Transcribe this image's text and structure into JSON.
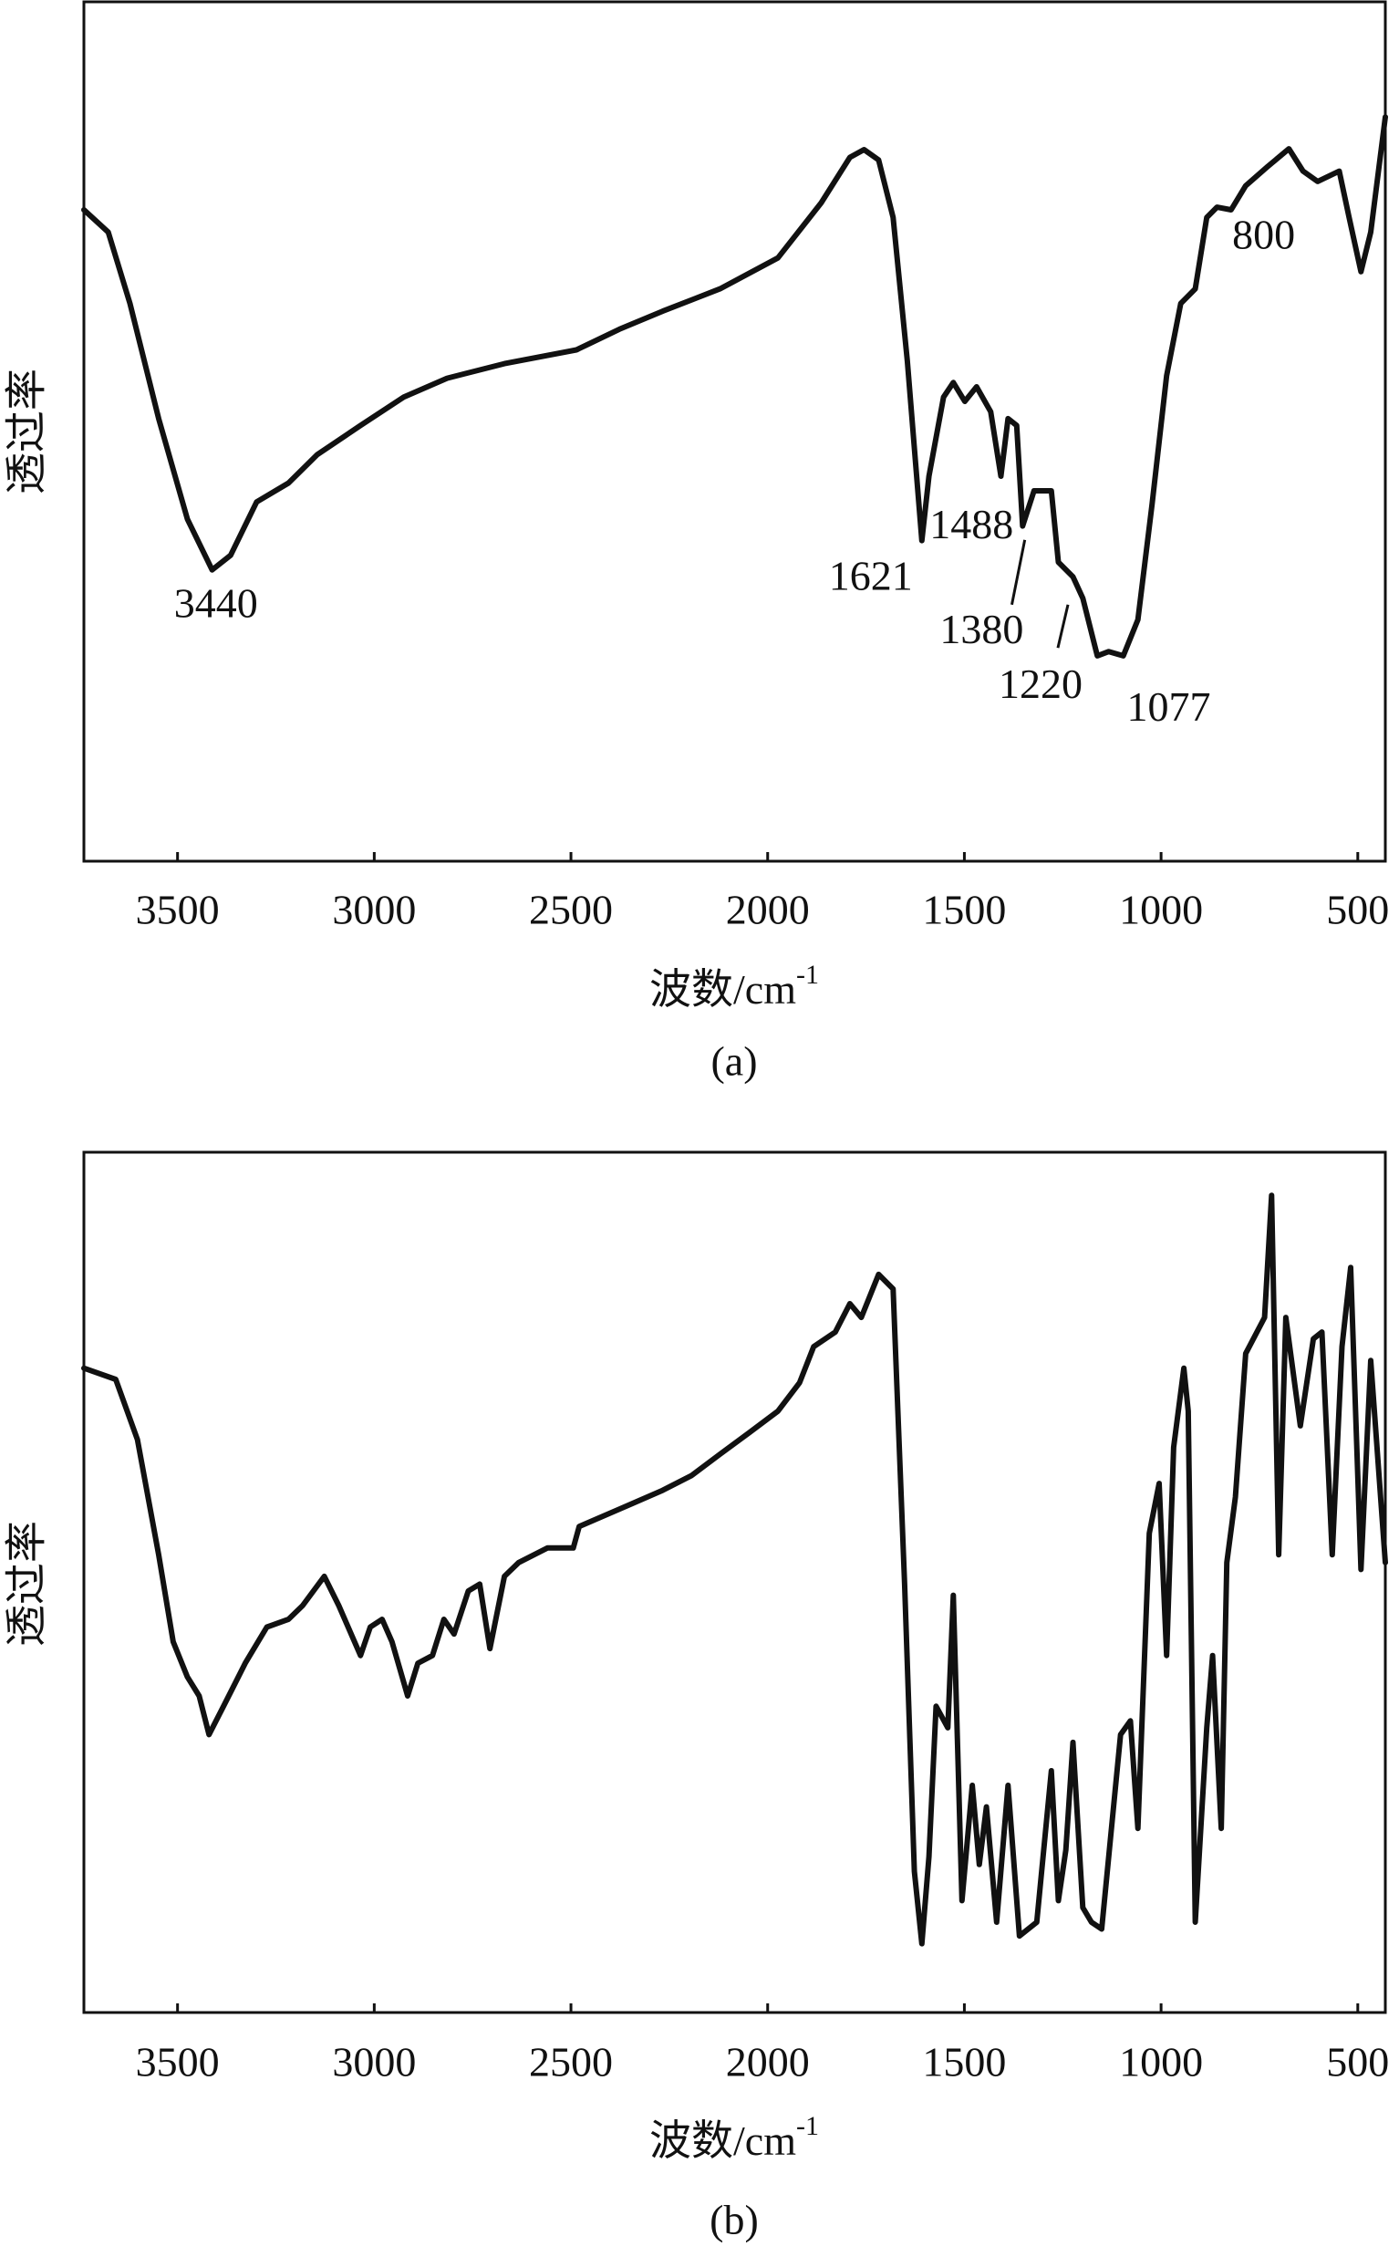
{
  "chart_data": [
    {
      "type": "line",
      "caption": "(a)",
      "ylabel": "透过率",
      "xlabel": "波数/cm",
      "xlabel_sup": "-1",
      "xlim": [
        3738,
        430
      ],
      "xticks": [
        3500,
        3000,
        2500,
        2000,
        1500,
        1000,
        500
      ],
      "ylim": [
        0,
        100
      ],
      "series": [
        {
          "color": "#111111",
          "x": [
            3738,
            3676,
            3621,
            3548,
            3475,
            3412,
            3365,
            3299,
            3218,
            3145,
            3035,
            2925,
            2815,
            2669,
            2486,
            2377,
            2267,
            2121,
            1974,
            1864,
            1791,
            1755,
            1718,
            1681,
            1645,
            1608,
            1590,
            1553,
            1528,
            1499,
            1469,
            1433,
            1407,
            1389,
            1367,
            1352,
            1323,
            1279,
            1261,
            1224,
            1199,
            1162,
            1133,
            1096,
            1059,
            1023,
            986,
            950,
            913,
            884,
            858,
            822,
            785,
            730,
            675,
            639,
            602,
            547,
            522,
            492,
            467,
            430
          ],
          "values": [
            75.8,
            73.2,
            64.9,
            51.5,
            39.8,
            33.9,
            35.6,
            41.8,
            44.0,
            47.3,
            50.7,
            54.0,
            56.2,
            57.9,
            59.5,
            61.9,
            64.0,
            66.6,
            70.2,
            76.6,
            81.9,
            82.8,
            81.6,
            74.9,
            58.2,
            37.3,
            44.8,
            54.0,
            55.7,
            53.5,
            55.2,
            52.3,
            44.8,
            51.5,
            50.7,
            39.0,
            43.1,
            43.1,
            34.8,
            33.1,
            30.6,
            23.9,
            24.4,
            23.9,
            28.1,
            41.5,
            56.5,
            64.9,
            66.6,
            74.9,
            76.1,
            75.8,
            78.6,
            80.8,
            82.9,
            80.3,
            79.1,
            80.3,
            74.9,
            68.6,
            73.2,
            86.6
          ]
        }
      ],
      "annotations": [
        "3440",
        "1621",
        "1488",
        "1380",
        "1220",
        "1077",
        "800"
      ]
    },
    {
      "type": "line",
      "caption": "(b)",
      "ylabel": "透过率",
      "xlabel": "波数/cm",
      "xlabel_sup": "-1",
      "xlim": [
        3738,
        430
      ],
      "xticks": [
        3500,
        3000,
        2500,
        2000,
        1500,
        1000,
        500
      ],
      "ylim": [
        0,
        100
      ],
      "series": [
        {
          "color": "#111111",
          "x": [
            3738,
            3657,
            3602,
            3548,
            3511,
            3475,
            3445,
            3420,
            3383,
            3328,
            3273,
            3218,
            3182,
            3127,
            3090,
            3035,
            3010,
            2980,
            2955,
            2915,
            2889,
            2852,
            2823,
            2797,
            2761,
            2732,
            2706,
            2669,
            2633,
            2560,
            2494,
            2479,
            2377,
            2267,
            2194,
            2121,
            2047,
            1974,
            1919,
            1883,
            1828,
            1791,
            1762,
            1718,
            1681,
            1652,
            1627,
            1608,
            1590,
            1572,
            1542,
            1528,
            1506,
            1480,
            1462,
            1444,
            1418,
            1389,
            1360,
            1316,
            1279,
            1261,
            1242,
            1224,
            1199,
            1177,
            1151,
            1103,
            1078,
            1059,
            1030,
            1005,
            986,
            968,
            942,
            931,
            913,
            884,
            869,
            847,
            833,
            811,
            785,
            737,
            719,
            701,
            683,
            646,
            613,
            591,
            565,
            540,
            518,
            492,
            467,
            430
          ],
          "values": [
            74.9,
            73.6,
            66.6,
            53.2,
            43.1,
            39.0,
            36.8,
            32.3,
            35.6,
            40.6,
            44.8,
            45.7,
            47.3,
            50.7,
            47.3,
            41.5,
            44.8,
            45.7,
            43.1,
            36.8,
            40.6,
            41.5,
            45.7,
            44.0,
            49.0,
            49.8,
            42.3,
            50.7,
            52.3,
            54.0,
            54.0,
            56.5,
            58.5,
            60.7,
            62.4,
            64.9,
            67.4,
            69.9,
            73.2,
            77.4,
            79.1,
            82.4,
            80.8,
            85.8,
            84.1,
            49.8,
            16.4,
            8.0,
            18.1,
            35.6,
            33.1,
            48.5,
            13.0,
            26.4,
            17.2,
            23.9,
            10.5,
            26.4,
            8.9,
            10.5,
            28.1,
            13.0,
            18.9,
            31.4,
            12.2,
            10.5,
            9.7,
            32.3,
            33.9,
            21.4,
            55.7,
            61.5,
            41.5,
            65.7,
            74.9,
            69.9,
            10.5,
            33.1,
            41.5,
            21.4,
            52.3,
            59.9,
            76.6,
            80.8,
            95.0,
            53.2,
            80.8,
            68.2,
            78.3,
            79.1,
            53.2,
            77.4,
            86.6,
            51.5,
            75.8,
            52.3
          ]
        }
      ]
    }
  ]
}
